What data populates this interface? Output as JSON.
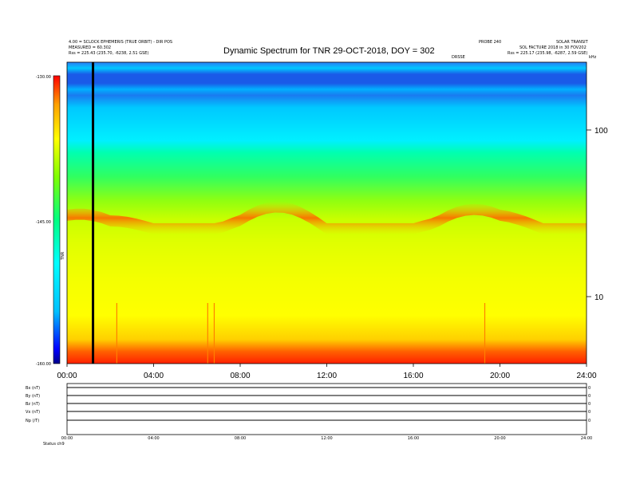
{
  "chart_data": {
    "type": "heatmap",
    "title": "Dynamic Spectrum for TNR 29-OCT-2018, DOY = 302",
    "x_ticks": [
      "00:00",
      "04:00",
      "08:00",
      "12:00",
      "16:00",
      "20:00",
      "24:00"
    ],
    "x_range_hours": [
      0,
      24
    ],
    "y_scale": "log",
    "y_ticks": [
      "100",
      "10"
    ],
    "colorbar": {
      "ticks": [
        "-130.00",
        "-145.00",
        "-160.00"
      ],
      "range": [
        -160,
        -130
      ],
      "label": "TNR",
      "colors": [
        "#00008b",
        "#0000ff",
        "#00c0ff",
        "#00ffff",
        "#00ff80",
        "#80ff00",
        "#ffff00",
        "#ffa000",
        "#ff0000"
      ]
    },
    "header_left": [
      "4.00 = SCLOCK EPHEMERIS (TRUE ORBIT) - DIR POS",
      "MEASURED = 60.302",
      "Rss = 225.43 (235.70, -6238, 2.51 GSE)"
    ],
    "header_right": [
      "PROBE 240",
      "SOLAR TRANSIT",
      "SOL FACTURE 2018 in 30 FOV202",
      "Rss = 225.17 (235.98, -6287, 2.59 GSE)"
    ],
    "top_marker": "DRSSE",
    "right_axis_label": "kHz",
    "spectrum_rows": [
      {
        "y_mhz": 300,
        "colors": [
          "#2a6bf0",
          "#2a6bf0",
          "#2a6bf0",
          "#2a6bf0",
          "#2a6bf0",
          "#2a6bf0",
          "#2a6bf0"
        ]
      },
      {
        "y_mhz": 200,
        "colors": [
          "#1a5ae8",
          "#1a5ae8",
          "#1a5ae8",
          "#1a5ae8",
          "#1a5ae8",
          "#1a5ae8",
          "#1a5ae8"
        ]
      },
      {
        "y_mhz": 120,
        "colors": [
          "#00c8ff",
          "#00c8ff",
          "#00c8ff",
          "#00c8ff",
          "#00c8ff",
          "#00c8ff",
          "#00c8ff"
        ]
      },
      {
        "y_mhz": 60,
        "colors": [
          "#00ffa0",
          "#30ff60",
          "#00ffa0",
          "#60ff40",
          "#40ff60",
          "#60ff40",
          "#00ffb0"
        ]
      },
      {
        "y_mhz": 30,
        "colors": [
          "#b8ff00",
          "#a8ff10",
          "#ff8000",
          "#ff6000",
          "#ff6000",
          "#ff8000",
          "#ff9a00"
        ]
      },
      {
        "y_mhz": 15,
        "colors": [
          "#d8ff00",
          "#d8ff00",
          "#d8ff00",
          "#d8ff00",
          "#d8ff00",
          "#d8ff00",
          "#d8ff00"
        ]
      },
      {
        "y_mhz": 8,
        "colors": [
          "#ffff00",
          "#ffff00",
          "#ffff00",
          "#ffff00",
          "#ffff00",
          "#ffff00",
          "#ffff00"
        ]
      },
      {
        "y_mhz": 6,
        "colors": [
          "#ff3000",
          "#ff3000",
          "#ff3000",
          "#ff3000",
          "#ff3000",
          "#ff3000",
          "#ff3000"
        ]
      }
    ],
    "event_marker_hour": 1.2,
    "bottom_panels": [
      {
        "label": "Bx (nT)",
        "value": 0
      },
      {
        "label": "By (nT)",
        "value": 0
      },
      {
        "label": "Bz (nT)",
        "value": 0
      },
      {
        "label": "Vx (nT)",
        "value": 0
      },
      {
        "label": "Np (/T)",
        "value": 0
      }
    ],
    "bottom_left_label": "Status  ch9"
  }
}
